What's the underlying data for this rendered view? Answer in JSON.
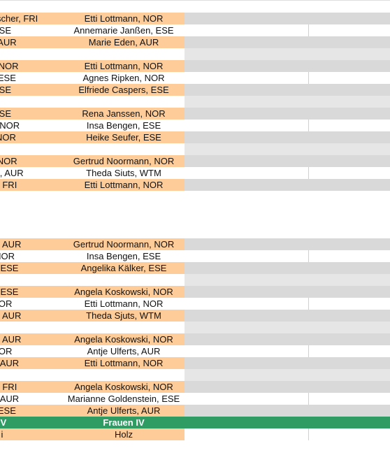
{
  "groups": [
    {
      "rows": [
        [
          "Lena Fischer, FRI",
          "Etti Lottmann, NOR"
        ],
        [
          "ESE",
          "Annemarie Janßen, ESE"
        ],
        [
          "n, AUR",
          "Marie Eden, AUR"
        ]
      ]
    },
    {
      "rows": [
        [
          "er, NOR",
          "Etti Lottmann, NOR"
        ],
        [
          "s, ESE",
          "Agnes Ripken, NOR"
        ],
        [
          "ESE",
          "Elfriede Caspers, ESE"
        ]
      ]
    },
    {
      "rows": [
        [
          "ESE",
          "Rena Janssen, NOR"
        ],
        [
          "off, NOR",
          "Insa Bengen, ESE"
        ],
        [
          "r, NOR",
          "Heike Seufer, ESE"
        ]
      ]
    },
    {
      "rows": [
        [
          "n, NOR",
          "Gertrud Noormann, NOR"
        ],
        [
          "bäck, AUR",
          "Theda Siuts, WTM"
        ],
        [
          "en, FRI",
          "Etti Lottmann, NOR"
        ]
      ]
    },
    {
      "rows": [
        [
          "ken, AUR",
          "Gertrud Noormann, NOR"
        ],
        [
          ", NOR",
          "Insa Bengen, ESE"
        ],
        [
          "bs, ESE",
          "Angelika Kälker, ESE"
        ]
      ]
    },
    {
      "rows": [
        [
          "bs, ESE",
          "Angela Koskowski, NOR"
        ],
        [
          "NOR",
          "Etti Lottmann, NOR"
        ],
        [
          "ken, AUR",
          "Theda Sjuts, WTM"
        ]
      ]
    },
    {
      "rows": [
        [
          "ken, AUR",
          "Angela Koskowski, NOR"
        ],
        [
          "NOR",
          "Antje Ulferts, AUR"
        ],
        [
          "en, AUR",
          "Etti Lottmann, NOR"
        ]
      ]
    },
    {
      "rows": [
        [
          "en, FRI",
          "Angela Koskowski, NOR"
        ],
        [
          "en, AUR",
          "Marianne Goldenstein, ESE"
        ],
        [
          "s, ESE",
          "Antje Ulferts, AUR"
        ]
      ]
    }
  ],
  "header": [
    "IV",
    "Frauen IV"
  ],
  "footer": [
    "i",
    "Holz"
  ]
}
